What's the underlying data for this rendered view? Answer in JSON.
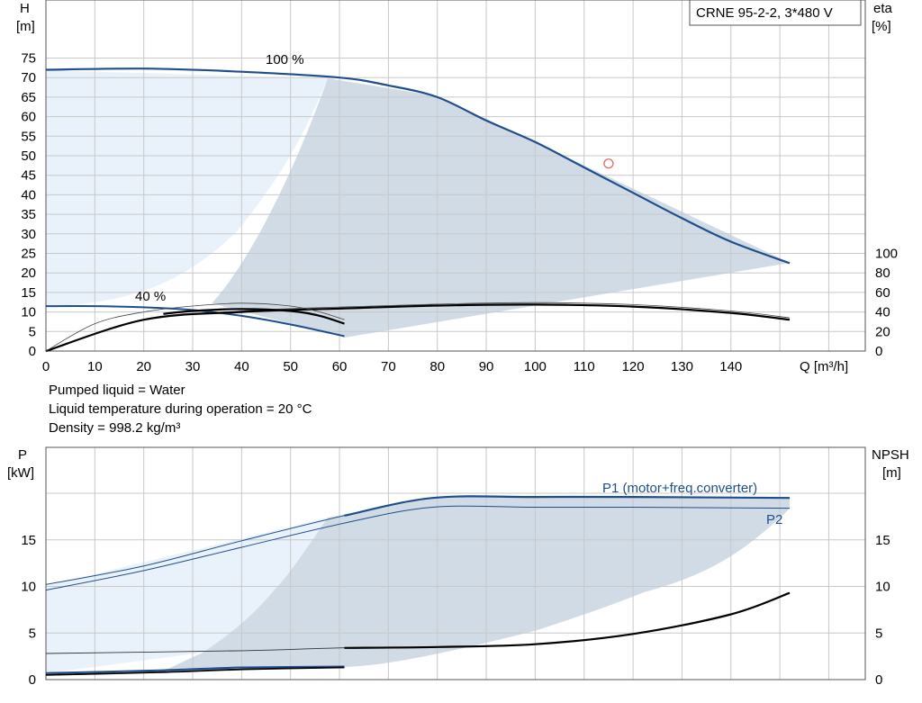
{
  "model_label": "CRNE 95-2-2, 3*480 V",
  "liquid_info": [
    "Pumped liquid = Water",
    "Liquid temperature during operation = 20 °C",
    "Density = 998.2 kg/m³"
  ],
  "colors": {
    "curve_blue": "#1f4e8c",
    "band_dark": "#d0dbe6",
    "band_light": "#e9f2fb",
    "grid": "#c8c8c8",
    "duty_point": "#e06060"
  },
  "chart_data": [
    {
      "type": "line",
      "name": "head-efficiency",
      "xlabel": "Q [m³/h]",
      "ylabel": "H\n[m]",
      "y2label": "eta\n[%]",
      "xlim": [
        0,
        160
      ],
      "ylim": [
        0,
        80
      ],
      "y2lim": [
        0,
        200
      ],
      "x_ticks": [
        0,
        10,
        20,
        30,
        40,
        50,
        60,
        70,
        80,
        90,
        100,
        110,
        120,
        130,
        140
      ],
      "y_ticks": [
        0,
        5,
        10,
        15,
        20,
        25,
        30,
        35,
        40,
        45,
        50,
        55,
        60,
        65,
        70,
        75
      ],
      "y2_ticks": [
        0,
        20,
        40,
        60,
        80,
        100
      ],
      "grid": true,
      "annotations": [
        {
          "text": "100 %",
          "x": 49,
          "y": 73.5
        },
        {
          "text": "40 %",
          "x": 22,
          "y": 13.5
        }
      ],
      "series": [
        {
          "role": "head-max",
          "x": [
            0,
            20,
            40,
            60,
            70,
            80,
            90,
            100,
            110,
            120,
            130,
            140,
            152
          ],
          "y": [
            72,
            72.3,
            71.5,
            70,
            68,
            65,
            59,
            53.5,
            47,
            40.5,
            34,
            28,
            22.5
          ]
        },
        {
          "role": "head-min",
          "x": [
            0,
            10,
            20,
            30,
            40,
            50,
            61
          ],
          "y": [
            11.5,
            11.5,
            11.2,
            10.5,
            9,
            6.8,
            3.8
          ]
        },
        {
          "role": "eta-max",
          "x": [
            0,
            20,
            40,
            60,
            80,
            100,
            120,
            140,
            152
          ],
          "y": [
            0,
            32,
            40,
            43.5,
            46.5,
            47.5,
            45.5,
            39,
            32
          ]
        },
        {
          "role": "eta-max-alt",
          "x": [
            0,
            20,
            40,
            60,
            80,
            100,
            120,
            140,
            152
          ],
          "y": [
            0,
            32,
            41,
            45,
            48,
            49.5,
            47.5,
            41,
            34
          ]
        },
        {
          "role": "eta-min",
          "x": [
            24,
            30,
            40,
            50,
            56,
            61
          ],
          "y": [
            38,
            41,
            43,
            41,
            36,
            28
          ]
        },
        {
          "role": "eta-min-alt",
          "x": [
            0,
            10,
            20,
            30,
            40,
            50,
            56,
            61
          ],
          "y": [
            0,
            28,
            40,
            46,
            49,
            46,
            40,
            32
          ]
        }
      ],
      "duty_point": {
        "x": 115,
        "y": 48
      }
    },
    {
      "type": "line",
      "name": "power-npsh",
      "ylabel": "P\n[kW]",
      "y2label": "NPSH\n[m]",
      "xlim": [
        0,
        160
      ],
      "ylim": [
        0,
        22
      ],
      "y2lim": [
        0,
        22
      ],
      "y_ticks": [
        0,
        5,
        10,
        15
      ],
      "y2_ticks": [
        0,
        5,
        10,
        15
      ],
      "grid": true,
      "series": [
        {
          "name": "P1 (motor+freq.converter)",
          "role": "p1-max",
          "x": [
            0,
            20,
            40,
            61,
            79,
            100,
            120,
            152
          ],
          "y": [
            10.2,
            12.2,
            14.9,
            17.6,
            19.5,
            19.6,
            19.6,
            19.5
          ]
        },
        {
          "name": "P2",
          "role": "p2-max",
          "x": [
            0,
            20,
            40,
            61,
            79,
            100,
            120,
            152
          ],
          "y": [
            9.6,
            11.7,
            14.2,
            16.8,
            18.5,
            18.5,
            18.5,
            18.4
          ]
        },
        {
          "role": "p1-min",
          "x": [
            0,
            24,
            40,
            61
          ],
          "y": [
            0.7,
            1,
            1.3,
            1.4
          ]
        },
        {
          "role": "p2-min",
          "x": [
            0,
            24,
            40,
            61
          ],
          "y": [
            0.5,
            0.8,
            1.1,
            1.3
          ]
        },
        {
          "role": "npsh",
          "x": [
            0,
            40,
            60,
            80,
            100,
            120,
            140,
            152
          ],
          "y": [
            2.8,
            3.1,
            3.4,
            3.5,
            3.8,
            4.9,
            7,
            9.3
          ]
        }
      ]
    }
  ]
}
